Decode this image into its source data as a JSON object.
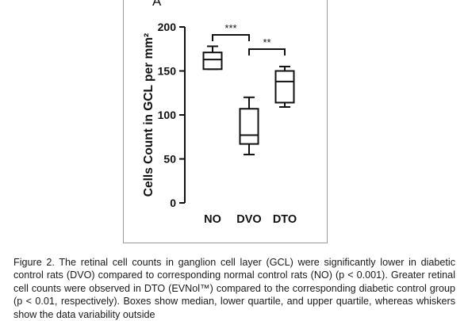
{
  "figure": {
    "panel_label": "A"
  },
  "chart_data": {
    "type": "box",
    "panel_label": "A",
    "ylabel": "Cells Count in GCL per mm²",
    "xlabel": "",
    "ylim": [
      0,
      200
    ],
    "yticks": [
      0,
      50,
      100,
      150,
      200
    ],
    "categories": [
      "NO",
      "DVO",
      "DTO"
    ],
    "boxes": [
      {
        "category": "NO",
        "min": 152,
        "q1": 152,
        "median": 163,
        "q3": 171,
        "max": 178
      },
      {
        "category": "DVO",
        "min": 55,
        "q1": 67,
        "median": 77,
        "q3": 107,
        "max": 120
      },
      {
        "category": "DTO",
        "min": 109,
        "q1": 114,
        "median": 138,
        "q3": 150,
        "max": 155
      }
    ],
    "significance": [
      {
        "from": "NO",
        "to": "DVO",
        "label": "***"
      },
      {
        "from": "DVO",
        "to": "DTO",
        "label": "**"
      }
    ],
    "grid": false,
    "legend": "none"
  },
  "caption": {
    "text": "Figure 2. The retinal cell counts in ganglion cell layer (GCL) were significantly lower in diabetic control rats (DVO) compared to corresponding normal control rats (NO) (p < 0.001). Greater retinal cell counts were observed in DTO (EVNol™) compared to the corresponding diabetic control group (p < 0.01, respectively). Boxes show median, lower quartile, and upper quartile, whereas whiskers show the data variability outside"
  }
}
